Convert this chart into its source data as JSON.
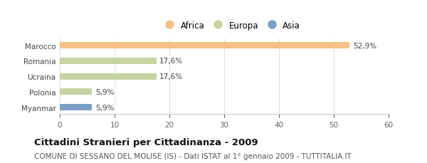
{
  "categories": [
    "Marocco",
    "Romania",
    "Ucraina",
    "Polonia",
    "Myanmar"
  ],
  "values": [
    52.9,
    17.6,
    17.6,
    5.9,
    5.9
  ],
  "labels": [
    "52,9%",
    "17,6%",
    "17,6%",
    "5,9%",
    "5,9%"
  ],
  "colors": [
    "#f5c189",
    "#c5d4a0",
    "#c5d4a0",
    "#c5d4a0",
    "#7b9ec7"
  ],
  "legend": [
    {
      "label": "Africa",
      "color": "#f5c189"
    },
    {
      "label": "Europa",
      "color": "#c5d4a0"
    },
    {
      "label": "Asia",
      "color": "#7b9ec7"
    }
  ],
  "xlim": [
    0,
    60
  ],
  "xticks": [
    0,
    10,
    20,
    30,
    40,
    50,
    60
  ],
  "title": "Cittadini Stranieri per Cittadinanza - 2009",
  "subtitle": "COMUNE DI SESSANO DEL MOLISE (IS) - Dati ISTAT al 1° gennaio 2009 - TUTTITALIA.IT",
  "title_fontsize": 9.5,
  "subtitle_fontsize": 7.5,
  "label_fontsize": 7.5,
  "tick_fontsize": 7.5,
  "ytick_fontsize": 7.5,
  "bar_height": 0.42,
  "background_color": "#ffffff"
}
